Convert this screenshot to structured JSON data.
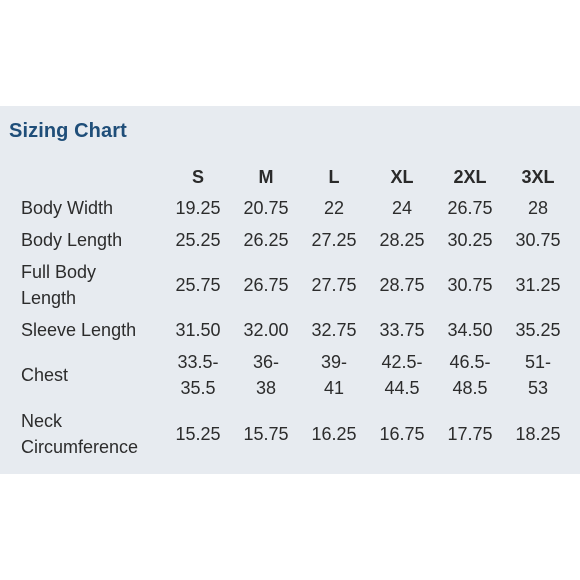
{
  "title": "Sizing Chart",
  "sizes": [
    "S",
    "M",
    "L",
    "XL",
    "2XL",
    "3XL"
  ],
  "rows": [
    {
      "label": "Body Width",
      "values": [
        "19.25",
        "20.75",
        "22",
        "24",
        "26.75",
        "28"
      ]
    },
    {
      "label": "Body Length",
      "values": [
        "25.25",
        "26.25",
        "27.25",
        "28.25",
        "30.25",
        "30.75"
      ]
    },
    {
      "label_lines": [
        "Full Body",
        "Length"
      ],
      "values": [
        "25.75",
        "26.75",
        "27.75",
        "28.75",
        "30.75",
        "31.25"
      ]
    },
    {
      "label": "Sleeve Length",
      "values": [
        "31.50",
        "32.00",
        "32.75",
        "33.75",
        "34.50",
        "35.25"
      ]
    },
    {
      "label": "Chest",
      "values_lines": [
        [
          "33.5-",
          "35.5"
        ],
        [
          "36-",
          "38"
        ],
        [
          "39-",
          "41"
        ],
        [
          "42.5-",
          "44.5"
        ],
        [
          "46.5-",
          "48.5"
        ],
        [
          "51-",
          "53"
        ]
      ]
    },
    {
      "label_lines": [
        "Neck",
        "Circumference"
      ],
      "values": [
        "15.25",
        "15.75",
        "16.25",
        "16.75",
        "17.75",
        "18.25"
      ]
    }
  ],
  "colors": {
    "panel_background": "#e7ebf0",
    "title": "#1f4e79",
    "text": "#2c2c2c"
  }
}
